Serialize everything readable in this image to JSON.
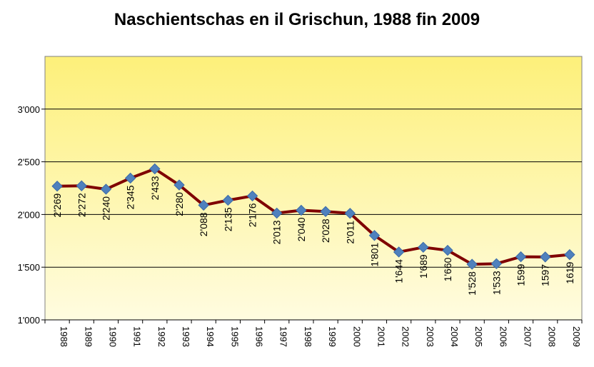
{
  "chart_data": {
    "type": "line",
    "title": "Naschientschas en il Grischun, 1988 fin 2009",
    "xlabel": "",
    "ylabel": "",
    "categories": [
      "1988",
      "1989",
      "1990",
      "1991",
      "1992",
      "1993",
      "1994",
      "1995",
      "1996",
      "1997",
      "1998",
      "1999",
      "2000",
      "2001",
      "2002",
      "2003",
      "2004",
      "2005",
      "2006",
      "2007",
      "2008",
      "2009"
    ],
    "values": [
      2269,
      2272,
      2240,
      2345,
      2433,
      2280,
      2088,
      2135,
      2176,
      2013,
      2040,
      2028,
      2011,
      1801,
      1644,
      1689,
      1660,
      1528,
      1533,
      1599,
      1597,
      1619
    ],
    "data_labels": [
      "2'269",
      "2'272",
      "2'240",
      "2'345",
      "2'433",
      "2'280",
      "2'088",
      "2'135",
      "2'176",
      "2'013",
      "2'040",
      "2'028",
      "2'011",
      "1'801",
      "1'644",
      "1'689",
      "1'660",
      "1'528",
      "1'533",
      "1599",
      "1597",
      "1619"
    ],
    "y_ticks": [
      1000,
      1500,
      2000,
      2500,
      3000
    ],
    "y_tick_labels": [
      "1'000",
      "1'500",
      "2'000",
      "2'500",
      "3'000"
    ],
    "ylim": [
      1000,
      3500
    ],
    "grid": true,
    "legend": "none",
    "colors": {
      "line": "#7f0000",
      "marker": "#4f81bd",
      "plot_bg_top": "#fdf07a",
      "plot_bg_bottom": "#fffce0",
      "gridline": "#000000"
    }
  }
}
